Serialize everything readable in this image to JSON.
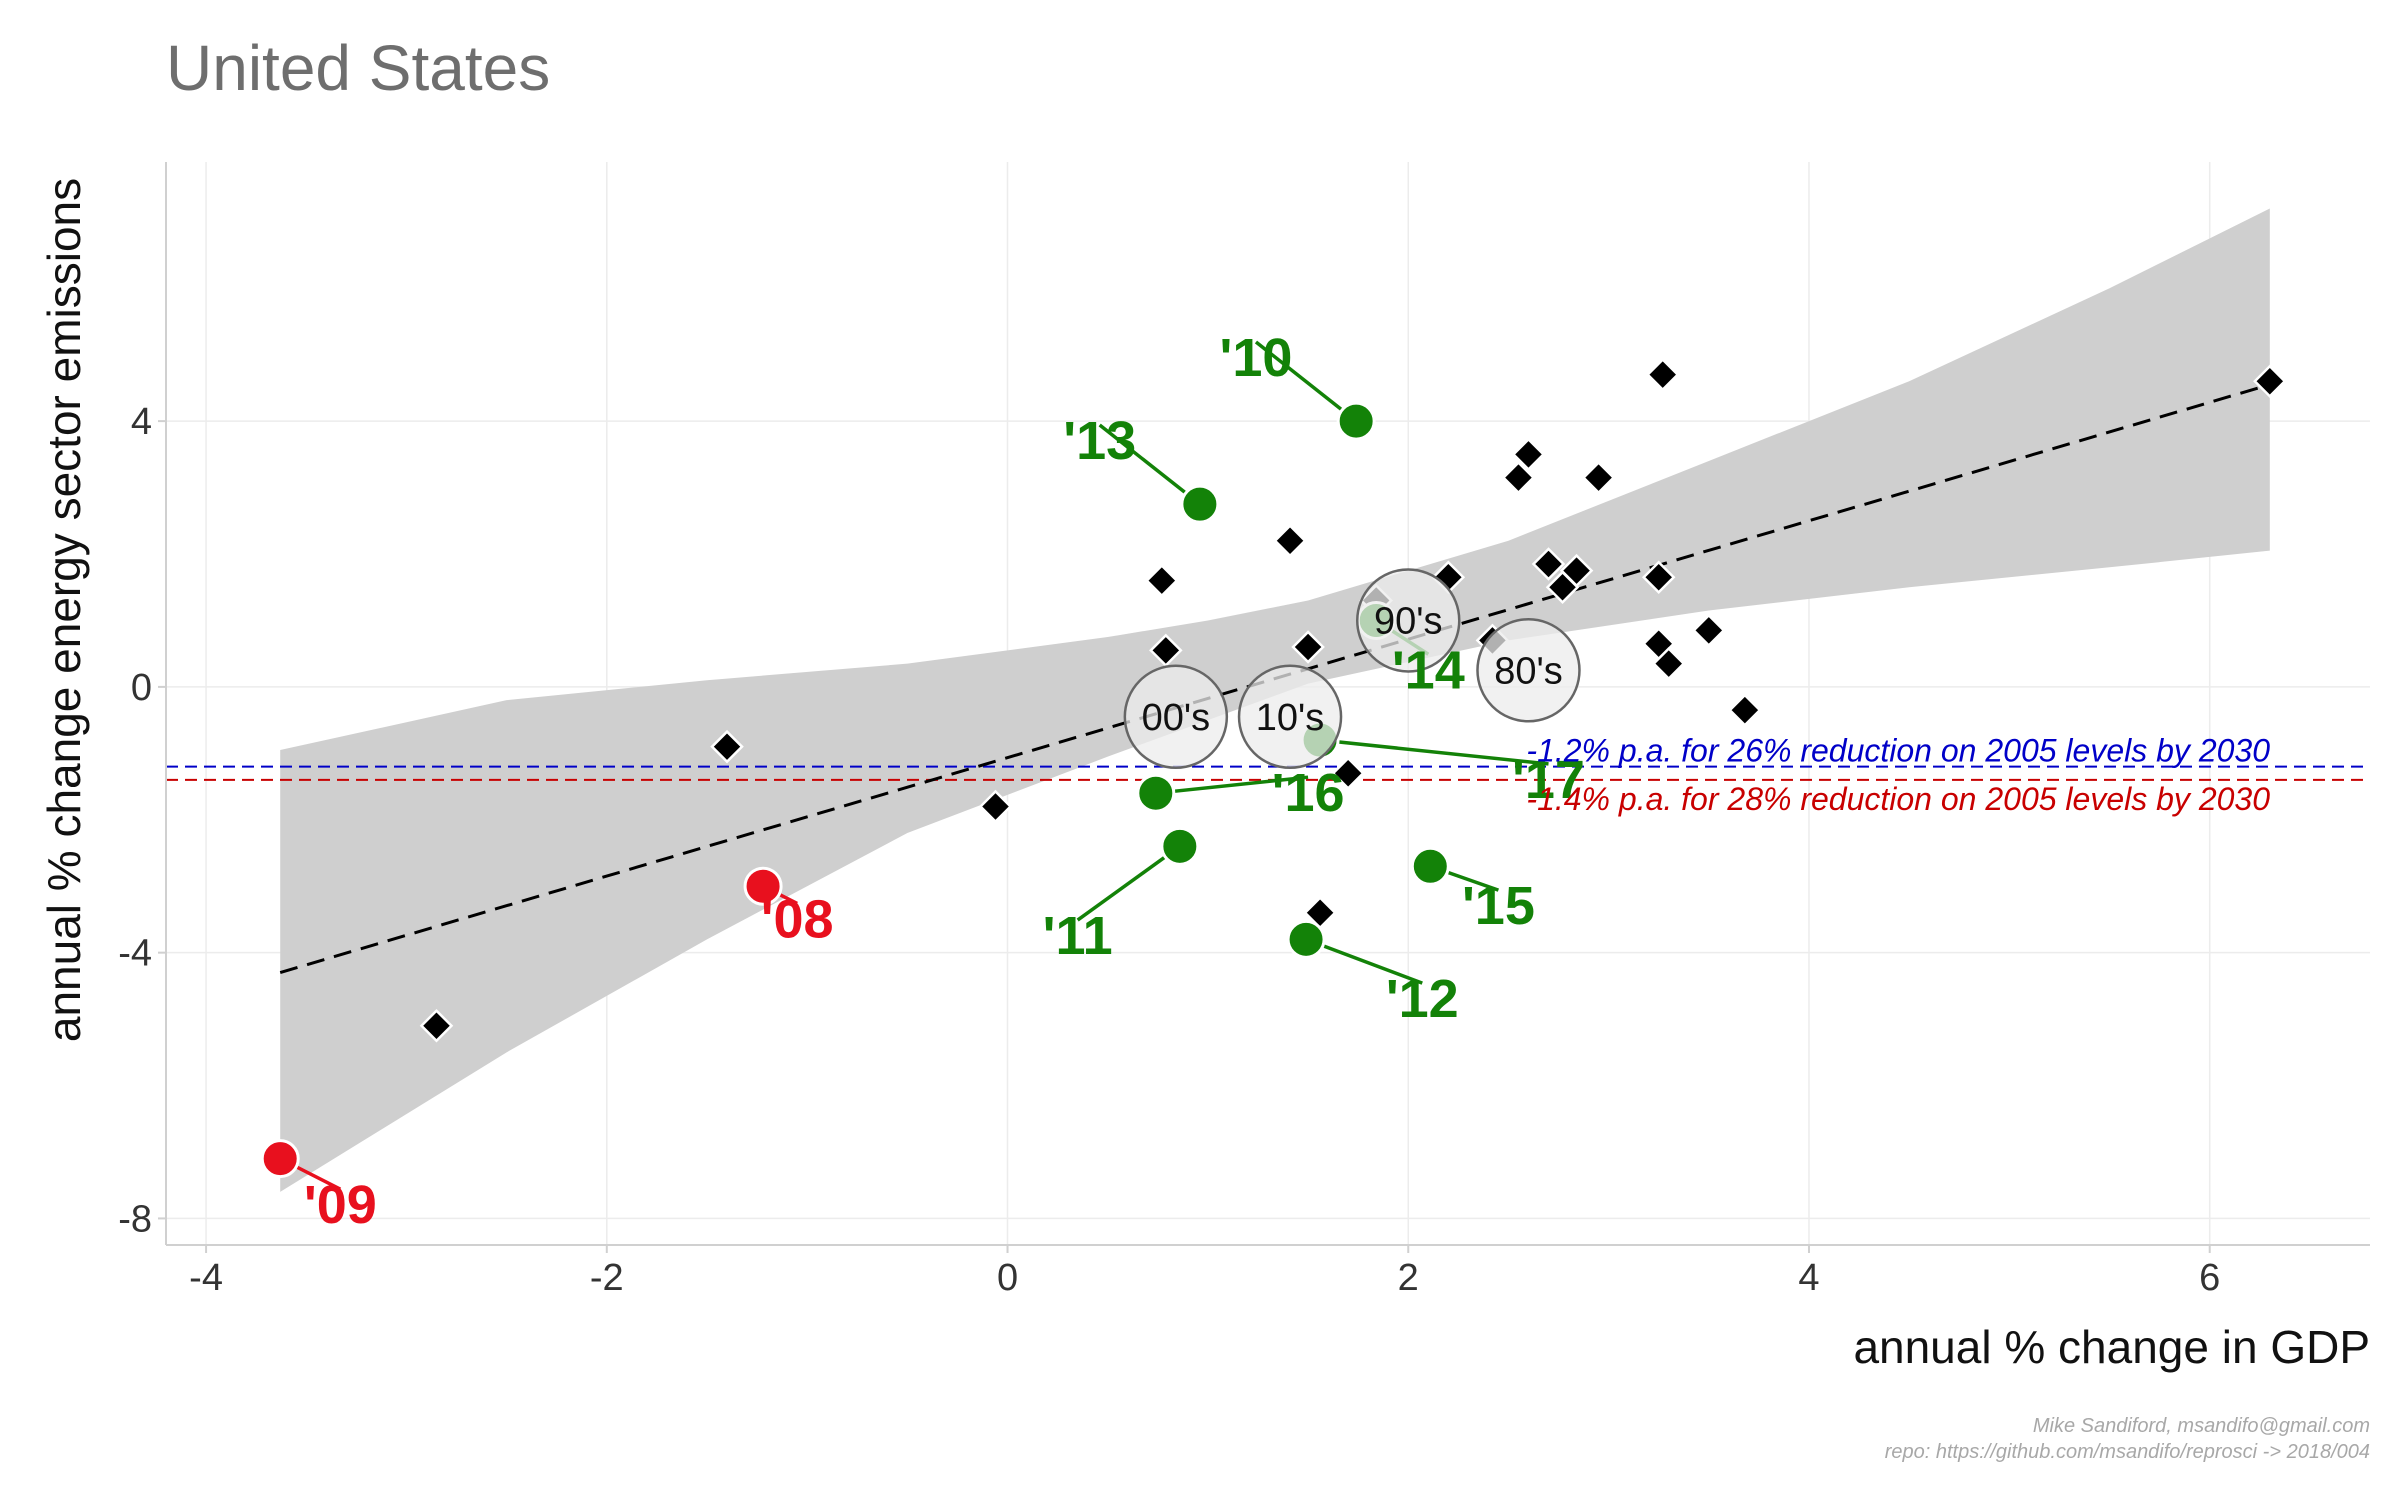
{
  "title": "United States",
  "caption": {
    "line1": "Mike Sandiford, msandifo@gmail.com",
    "line2": "repo: https://github.com/msandifo/reprosci -> 2018/004"
  },
  "colors": {
    "recession": "#e8101e",
    "recent": "#138208",
    "decade_fill": "#ececec",
    "ribbon": "#cfcfcf",
    "ref_blue": "#0000c8",
    "ref_red": "#c80000"
  },
  "chart_data": {
    "type": "scatter",
    "title": "United States",
    "xlabel": "annual % change in GDP",
    "ylabel": "annual % change energy sector emissions",
    "xlim": [
      -4.2,
      6.8
    ],
    "ylim": [
      -8.4,
      7.9
    ],
    "xticks": [
      -4,
      -2,
      0,
      2,
      4,
      6
    ],
    "yticks": [
      -8,
      -4,
      0,
      4
    ],
    "grid": true,
    "historical_points": [
      {
        "x": -2.85,
        "y": -5.1
      },
      {
        "x": -1.4,
        "y": -0.9
      },
      {
        "x": -0.06,
        "y": -1.8
      },
      {
        "x": 0.77,
        "y": 1.6
      },
      {
        "x": 0.79,
        "y": 0.55
      },
      {
        "x": 1.41,
        "y": 2.2
      },
      {
        "x": 1.5,
        "y": 0.6
      },
      {
        "x": 1.56,
        "y": -3.4
      },
      {
        "x": 1.7,
        "y": -1.3
      },
      {
        "x": 1.84,
        "y": 1.3
      },
      {
        "x": 2.2,
        "y": 1.65
      },
      {
        "x": 2.42,
        "y": 0.7
      },
      {
        "x": 2.55,
        "y": 3.15
      },
      {
        "x": 2.6,
        "y": 3.5
      },
      {
        "x": 2.7,
        "y": 1.85
      },
      {
        "x": 2.77,
        "y": 1.5
      },
      {
        "x": 2.84,
        "y": 1.75
      },
      {
        "x": 2.95,
        "y": 3.15
      },
      {
        "x": 3.25,
        "y": 1.65
      },
      {
        "x": 3.25,
        "y": 0.65
      },
      {
        "x": 3.27,
        "y": 4.7
      },
      {
        "x": 3.3,
        "y": 0.35
      },
      {
        "x": 3.5,
        "y": 0.85
      },
      {
        "x": 3.68,
        "y": -0.35
      },
      {
        "x": 6.3,
        "y": 4.6
      }
    ],
    "labeled_points": [
      {
        "label": "'08",
        "x": -1.22,
        "y": -3.0,
        "group": "recession",
        "lx": -1.05,
        "ly": -3.5
      },
      {
        "label": "'09",
        "x": -3.63,
        "y": -7.1,
        "group": "recession",
        "lx": -3.33,
        "ly": -7.8
      },
      {
        "label": "'10",
        "x": 1.74,
        "y": 4.0,
        "group": "recent",
        "lx": 1.24,
        "ly": 4.95
      },
      {
        "label": "'11",
        "x": 0.86,
        "y": -2.4,
        "group": "recent",
        "lx": 0.35,
        "ly": -3.75
      },
      {
        "label": "'12",
        "x": 1.49,
        "y": -3.8,
        "group": "recent",
        "lx": 2.07,
        "ly": -4.7
      },
      {
        "label": "'13",
        "x": 0.96,
        "y": 2.75,
        "group": "recent",
        "lx": 0.46,
        "ly": 3.7
      },
      {
        "label": "'14",
        "x": 1.84,
        "y": 1.0,
        "group": "recent",
        "lx": 2.1,
        "ly": 0.25
      },
      {
        "label": "'15",
        "x": 2.11,
        "y": -2.7,
        "group": "recent",
        "lx": 2.45,
        "ly": -3.3
      },
      {
        "label": "'16",
        "x": 0.74,
        "y": -1.6,
        "group": "recent",
        "lx": 1.5,
        "ly": -1.6
      },
      {
        "label": "'17",
        "x": 1.56,
        "y": -0.8,
        "group": "recent",
        "lx": 2.7,
        "ly": -1.4
      }
    ],
    "decade_means": [
      {
        "label": "00's",
        "x": 0.84,
        "y": -0.45
      },
      {
        "label": "10's",
        "x": 1.41,
        "y": -0.45
      },
      {
        "label": "90's",
        "x": 2.0,
        "y": 1.0
      },
      {
        "label": "80's",
        "x": 2.6,
        "y": 0.25
      }
    ],
    "trend_line": {
      "x": [
        -3.63,
        6.3
      ],
      "y": [
        -4.3,
        4.55
      ]
    },
    "confidence_band": {
      "x": [
        -3.63,
        -2.5,
        -1.5,
        -0.5,
        0.5,
        1.0,
        1.5,
        2.5,
        3.5,
        4.5,
        5.5,
        6.3
      ],
      "lower": [
        -7.6,
        -5.5,
        -3.8,
        -2.2,
        -1.05,
        -0.5,
        0.05,
        0.7,
        1.15,
        1.5,
        1.8,
        2.05
      ],
      "upper": [
        -0.95,
        -0.2,
        0.1,
        0.35,
        0.75,
        1.0,
        1.3,
        2.2,
        3.4,
        4.6,
        6.0,
        7.2
      ]
    },
    "reference_lines": [
      {
        "y": -1.2,
        "color": "#0000c8",
        "label": "-1.2% p.a. for 26% reduction on 2005 levels by 2030"
      },
      {
        "y": -1.4,
        "color": "#c80000",
        "label": "-1.4% p.a. for 28% reduction on 2005 levels by 2030"
      }
    ]
  }
}
